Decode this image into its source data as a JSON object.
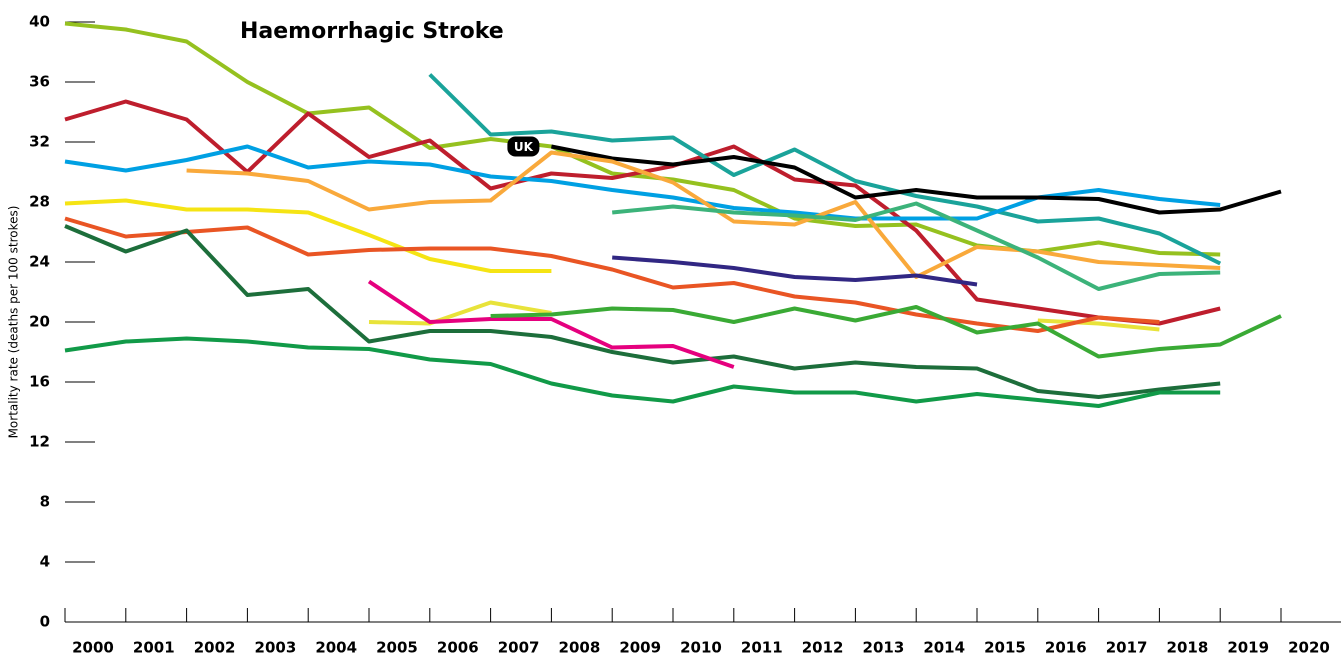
{
  "chart_data": {
    "type": "line",
    "title": "Haemorrhagic Stroke",
    "y_label": "Mortality rate (deaths per 100 strokes)",
    "categories": [
      "2000",
      "2001",
      "2002",
      "2003",
      "2004",
      "2005",
      "2006",
      "2007",
      "2008",
      "2009",
      "2010",
      "2011",
      "2012",
      "2013",
      "2014",
      "2015",
      "2016",
      "2017",
      "2018",
      "2019",
      "2020"
    ],
    "ylim": [
      0,
      40
    ],
    "yticks": [
      0,
      4,
      8,
      12,
      16,
      20,
      24,
      28,
      32,
      36,
      40
    ],
    "series": [
      {
        "color": "#95c11f",
        "values": [
          39.9,
          39.5,
          38.7,
          36,
          33.9,
          34.3,
          31.6,
          32.2,
          31.7,
          29.9,
          29.5,
          28.8,
          26.9,
          26.4,
          26.5,
          25.1,
          24.7,
          25.3,
          24.6,
          24.5,
          null
        ]
      },
      {
        "color": "#be1e2d",
        "values": [
          33.5,
          34.7,
          33.5,
          30,
          33.9,
          31,
          32.1,
          28.9,
          29.9,
          29.6,
          30.4,
          31.7,
          29.5,
          29.1,
          26.1,
          21.5,
          20.9,
          20.3,
          19.9,
          20.9,
          null
        ]
      },
      {
        "color": "#1aa39a",
        "values": [
          null,
          null,
          null,
          null,
          null,
          null,
          36.5,
          32.5,
          32.7,
          32.1,
          32.3,
          29.8,
          31.5,
          29.4,
          28.4,
          27.7,
          26.7,
          26.9,
          25.9,
          23.9,
          null
        ]
      },
      {
        "color": "#00a0e3",
        "values": [
          30.7,
          30.1,
          30.8,
          31.7,
          30.3,
          30.7,
          30.5,
          29.7,
          29.4,
          28.8,
          28.3,
          27.6,
          27.3,
          26.9,
          26.9,
          26.9,
          28.3,
          28.8,
          28.2,
          27.8,
          null
        ]
      },
      {
        "name": "UK",
        "color": "#000000",
        "values": [
          null,
          null,
          null,
          null,
          null,
          null,
          null,
          null,
          31.7,
          30.9,
          30.5,
          31,
          30.3,
          28.3,
          28.8,
          28.3,
          28.3,
          28.2,
          27.3,
          27.5,
          28.7
        ]
      },
      {
        "color": "#f9a93b",
        "values": [
          null,
          null,
          30.1,
          29.9,
          29.4,
          27.5,
          28,
          28.1,
          31.3,
          30.7,
          29.3,
          26.7,
          26.5,
          28,
          23,
          25,
          24.7,
          24,
          23.8,
          23.6,
          null
        ]
      },
      {
        "color": "#f5e414",
        "values": [
          27.9,
          28.1,
          27.5,
          27.5,
          27.3,
          25.8,
          24.2,
          23.4,
          23.4,
          null,
          null,
          null,
          null,
          null,
          null,
          null,
          null,
          null,
          null,
          null,
          null
        ]
      },
      {
        "color": "#e8e33a",
        "values": [
          null,
          null,
          null,
          null,
          null,
          20,
          19.9,
          21.3,
          20.6,
          null,
          null,
          null,
          null,
          null,
          null,
          null,
          20.1,
          19.9,
          19.5,
          null,
          null
        ]
      },
      {
        "color": "#e95524",
        "values": [
          26.9,
          25.7,
          26,
          26.3,
          24.5,
          24.8,
          24.9,
          24.9,
          24.4,
          23.5,
          22.3,
          22.6,
          21.7,
          21.3,
          20.5,
          19.9,
          19.4,
          20.3,
          20,
          null,
          null
        ]
      },
      {
        "color": "#1d6e3b",
        "values": [
          26.4,
          24.7,
          26.1,
          21.8,
          22.2,
          18.7,
          19.4,
          19.4,
          19,
          18,
          17.3,
          17.7,
          16.9,
          17.3,
          17,
          16.9,
          15.4,
          15,
          15.5,
          15.9,
          null
        ]
      },
      {
        "color": "#119a48",
        "values": [
          18.1,
          18.7,
          18.9,
          18.7,
          18.3,
          18.2,
          17.5,
          17.2,
          15.9,
          15.1,
          14.7,
          15.7,
          15.3,
          15.3,
          14.7,
          15.2,
          14.8,
          14.4,
          15.3,
          15.3,
          null
        ]
      },
      {
        "color": "#312783",
        "values": [
          null,
          null,
          null,
          null,
          null,
          null,
          null,
          null,
          null,
          24.3,
          24,
          23.6,
          23,
          22.8,
          23.1,
          22.5,
          null,
          null,
          null,
          null,
          null
        ]
      },
      {
        "color": "#e5007e",
        "values": [
          null,
          null,
          null,
          null,
          null,
          22.7,
          20,
          20.2,
          20.2,
          18.3,
          18.4,
          17,
          null,
          null,
          null,
          null,
          null,
          null,
          null,
          null,
          null
        ]
      },
      {
        "color": "#3aaa35",
        "values": [
          null,
          null,
          null,
          null,
          null,
          null,
          null,
          20.4,
          20.5,
          20.9,
          20.8,
          20,
          20.9,
          20.1,
          21,
          19.3,
          19.9,
          17.7,
          18.2,
          18.5,
          20.4
        ]
      },
      {
        "color": "#3cb37a",
        "values": [
          null,
          null,
          null,
          null,
          null,
          null,
          null,
          null,
          null,
          27.3,
          27.7,
          27.3,
          27.1,
          26.8,
          27.9,
          26.1,
          24.3,
          22.2,
          23.2,
          23.3,
          null
        ]
      }
    ]
  }
}
